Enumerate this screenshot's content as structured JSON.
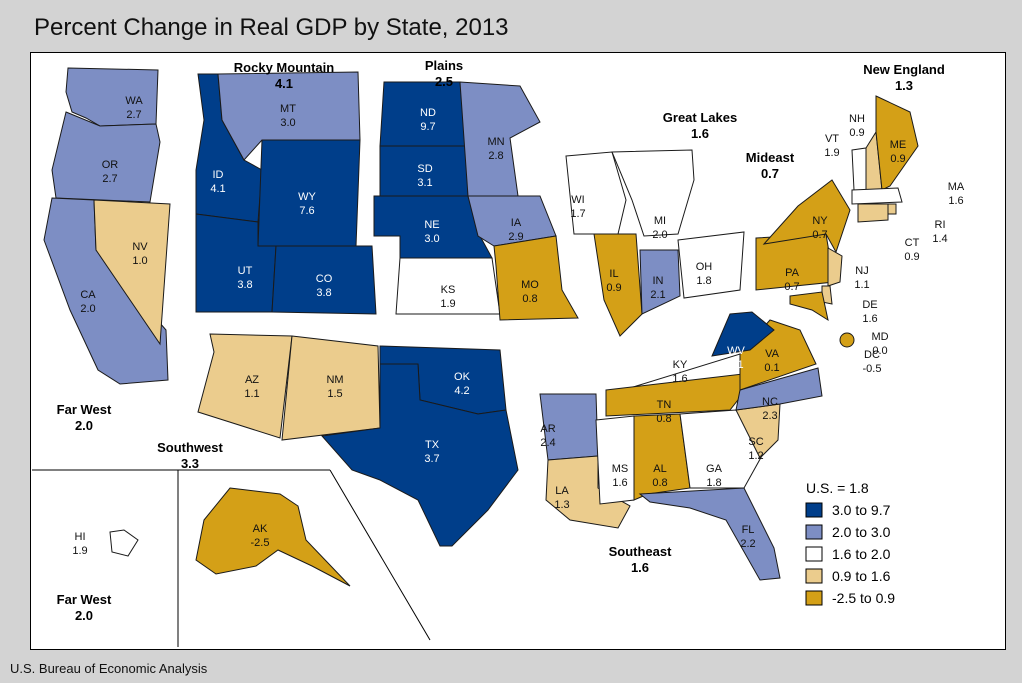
{
  "title": "Percent Change in Real GDP by State, 2013",
  "source": "U.S. Bureau of Economic Analysis",
  "colors": {
    "c1": "#003e8a",
    "c2": "#7d8ec4",
    "c3": "#ffffff",
    "c4": "#ebcc8d",
    "c5": "#d4a017"
  },
  "legend": {
    "us_label": "U.S. = 1.8",
    "items": [
      {
        "label": "3.0 to 9.7",
        "color": "#003e8a"
      },
      {
        "label": "2.0 to 3.0",
        "color": "#7d8ec4"
      },
      {
        "label": "1.6 to 2.0",
        "color": "#ffffff"
      },
      {
        "label": "0.9 to 1.6",
        "color": "#ebcc8d"
      },
      {
        "label": "-2.5 to 0.9",
        "color": "#d4a017"
      }
    ]
  },
  "regions": [
    {
      "name": "Rocky Mountain",
      "value": "4.1"
    },
    {
      "name": "Plains",
      "value": "2.5"
    },
    {
      "name": "New England",
      "value": "1.3"
    },
    {
      "name": "Great Lakes",
      "value": "1.6"
    },
    {
      "name": "Mideast",
      "value": "0.7"
    },
    {
      "name": "Far West",
      "value": "2.0"
    },
    {
      "name": "Southwest",
      "value": "3.3"
    },
    {
      "name": "Southeast",
      "value": "1.6"
    },
    {
      "name": "Far West",
      "value": "2.0"
    }
  ],
  "states": [
    {
      "abbr": "WA",
      "value": "2.7",
      "cls": "c2"
    },
    {
      "abbr": "OR",
      "value": "2.7",
      "cls": "c2"
    },
    {
      "abbr": "CA",
      "value": "2.0",
      "cls": "c2"
    },
    {
      "abbr": "NV",
      "value": "1.0",
      "cls": "c4"
    },
    {
      "abbr": "ID",
      "value": "4.1",
      "cls": "c1"
    },
    {
      "abbr": "MT",
      "value": "3.0",
      "cls": "c2"
    },
    {
      "abbr": "WY",
      "value": "7.6",
      "cls": "c1"
    },
    {
      "abbr": "UT",
      "value": "3.8",
      "cls": "c1"
    },
    {
      "abbr": "CO",
      "value": "3.8",
      "cls": "c1"
    },
    {
      "abbr": "AZ",
      "value": "1.1",
      "cls": "c4"
    },
    {
      "abbr": "NM",
      "value": "1.5",
      "cls": "c4"
    },
    {
      "abbr": "ND",
      "value": "9.7",
      "cls": "c1"
    },
    {
      "abbr": "SD",
      "value": "3.1",
      "cls": "c1"
    },
    {
      "abbr": "NE",
      "value": "3.0",
      "cls": "c1"
    },
    {
      "abbr": "KS",
      "value": "1.9",
      "cls": "c3"
    },
    {
      "abbr": "OK",
      "value": "4.2",
      "cls": "c1"
    },
    {
      "abbr": "TX",
      "value": "3.7",
      "cls": "c1"
    },
    {
      "abbr": "MN",
      "value": "2.8",
      "cls": "c2"
    },
    {
      "abbr": "IA",
      "value": "2.9",
      "cls": "c2"
    },
    {
      "abbr": "MO",
      "value": "0.8",
      "cls": "c5"
    },
    {
      "abbr": "AR",
      "value": "2.4",
      "cls": "c2"
    },
    {
      "abbr": "LA",
      "value": "1.3",
      "cls": "c4"
    },
    {
      "abbr": "WI",
      "value": "1.7",
      "cls": "c3"
    },
    {
      "abbr": "MI",
      "value": "2.0",
      "cls": "c3"
    },
    {
      "abbr": "IL",
      "value": "0.9",
      "cls": "c5"
    },
    {
      "abbr": "IN",
      "value": "2.1",
      "cls": "c2"
    },
    {
      "abbr": "OH",
      "value": "1.8",
      "cls": "c3"
    },
    {
      "abbr": "KY",
      "value": "1.6",
      "cls": "c3"
    },
    {
      "abbr": "TN",
      "value": "0.8",
      "cls": "c5"
    },
    {
      "abbr": "MS",
      "value": "1.6",
      "cls": "c3"
    },
    {
      "abbr": "AL",
      "value": "0.8",
      "cls": "c5"
    },
    {
      "abbr": "GA",
      "value": "1.8",
      "cls": "c3"
    },
    {
      "abbr": "FL",
      "value": "2.2",
      "cls": "c2"
    },
    {
      "abbr": "SC",
      "value": "1.2",
      "cls": "c4"
    },
    {
      "abbr": "NC",
      "value": "2.3",
      "cls": "c2"
    },
    {
      "abbr": "VA",
      "value": "0.1",
      "cls": "c5"
    },
    {
      "abbr": "WV",
      "value": "5.1",
      "cls": "c1"
    },
    {
      "abbr": "PA",
      "value": "0.7",
      "cls": "c5"
    },
    {
      "abbr": "NY",
      "value": "0.7",
      "cls": "c5"
    },
    {
      "abbr": "NJ",
      "value": "1.1",
      "cls": "c4"
    },
    {
      "abbr": "DE",
      "value": "1.6",
      "cls": "c4"
    },
    {
      "abbr": "MD",
      "value": "0.0",
      "cls": "c5"
    },
    {
      "abbr": "DC",
      "value": "-0.5",
      "cls": "c5"
    },
    {
      "abbr": "VT",
      "value": "1.9",
      "cls": "c3"
    },
    {
      "abbr": "NH",
      "value": "0.9",
      "cls": "c4"
    },
    {
      "abbr": "ME",
      "value": "0.9",
      "cls": "c5"
    },
    {
      "abbr": "MA",
      "value": "1.6",
      "cls": "c3"
    },
    {
      "abbr": "RI",
      "value": "1.4",
      "cls": "c4"
    },
    {
      "abbr": "CT",
      "value": "0.9",
      "cls": "c4"
    },
    {
      "abbr": "AK",
      "value": "-2.5",
      "cls": "c5"
    },
    {
      "abbr": "HI",
      "value": "1.9",
      "cls": "c3"
    }
  ]
}
